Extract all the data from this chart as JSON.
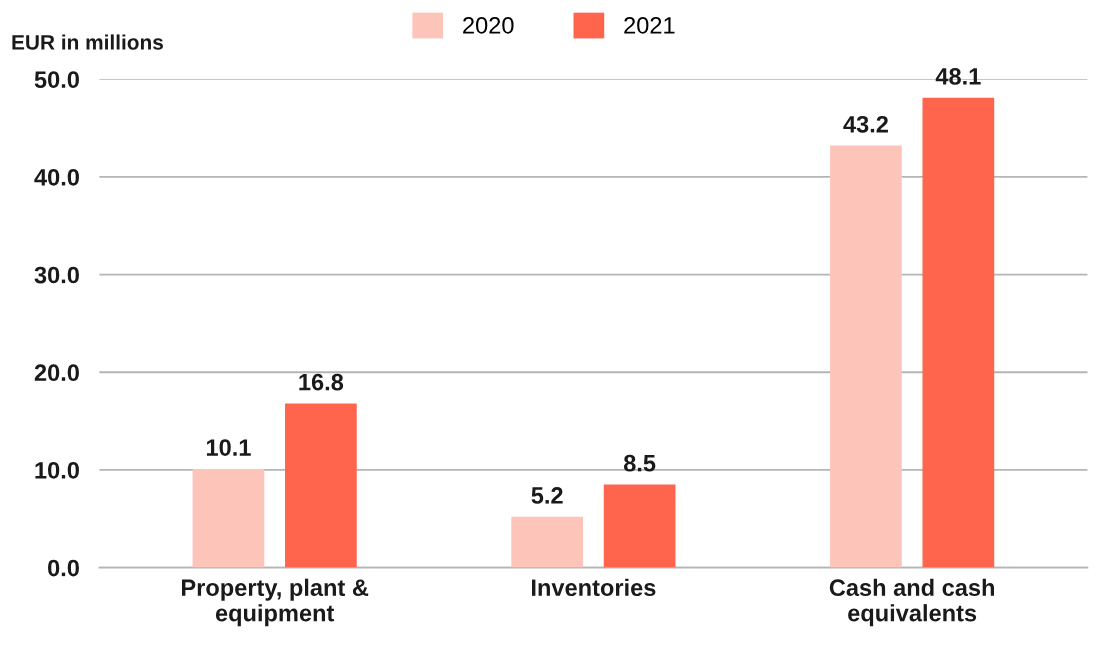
{
  "chart_data": {
    "type": "bar",
    "ylabel": "EUR in millions",
    "categories": [
      "Property, plant &\nequipment",
      "Inventories",
      "Cash and cash\nequivalents"
    ],
    "series": [
      {
        "name": "2020",
        "color": "#fdc5ba",
        "values": [
          10.1,
          5.2,
          43.2
        ]
      },
      {
        "name": "2021",
        "color": "#ff644c",
        "values": [
          16.8,
          8.5,
          48.1
        ]
      }
    ],
    "ylim": [
      0,
      50
    ],
    "yticks": [
      {
        "value": 0,
        "label": "0.0"
      },
      {
        "value": 10,
        "label": "10.0"
      },
      {
        "value": 20,
        "label": "20.0"
      },
      {
        "value": 30,
        "label": "30.0"
      },
      {
        "value": 40,
        "label": "40.0"
      },
      {
        "value": 50,
        "label": "50.0"
      }
    ],
    "grid": "y",
    "legend": "top",
    "data_labels": true
  }
}
